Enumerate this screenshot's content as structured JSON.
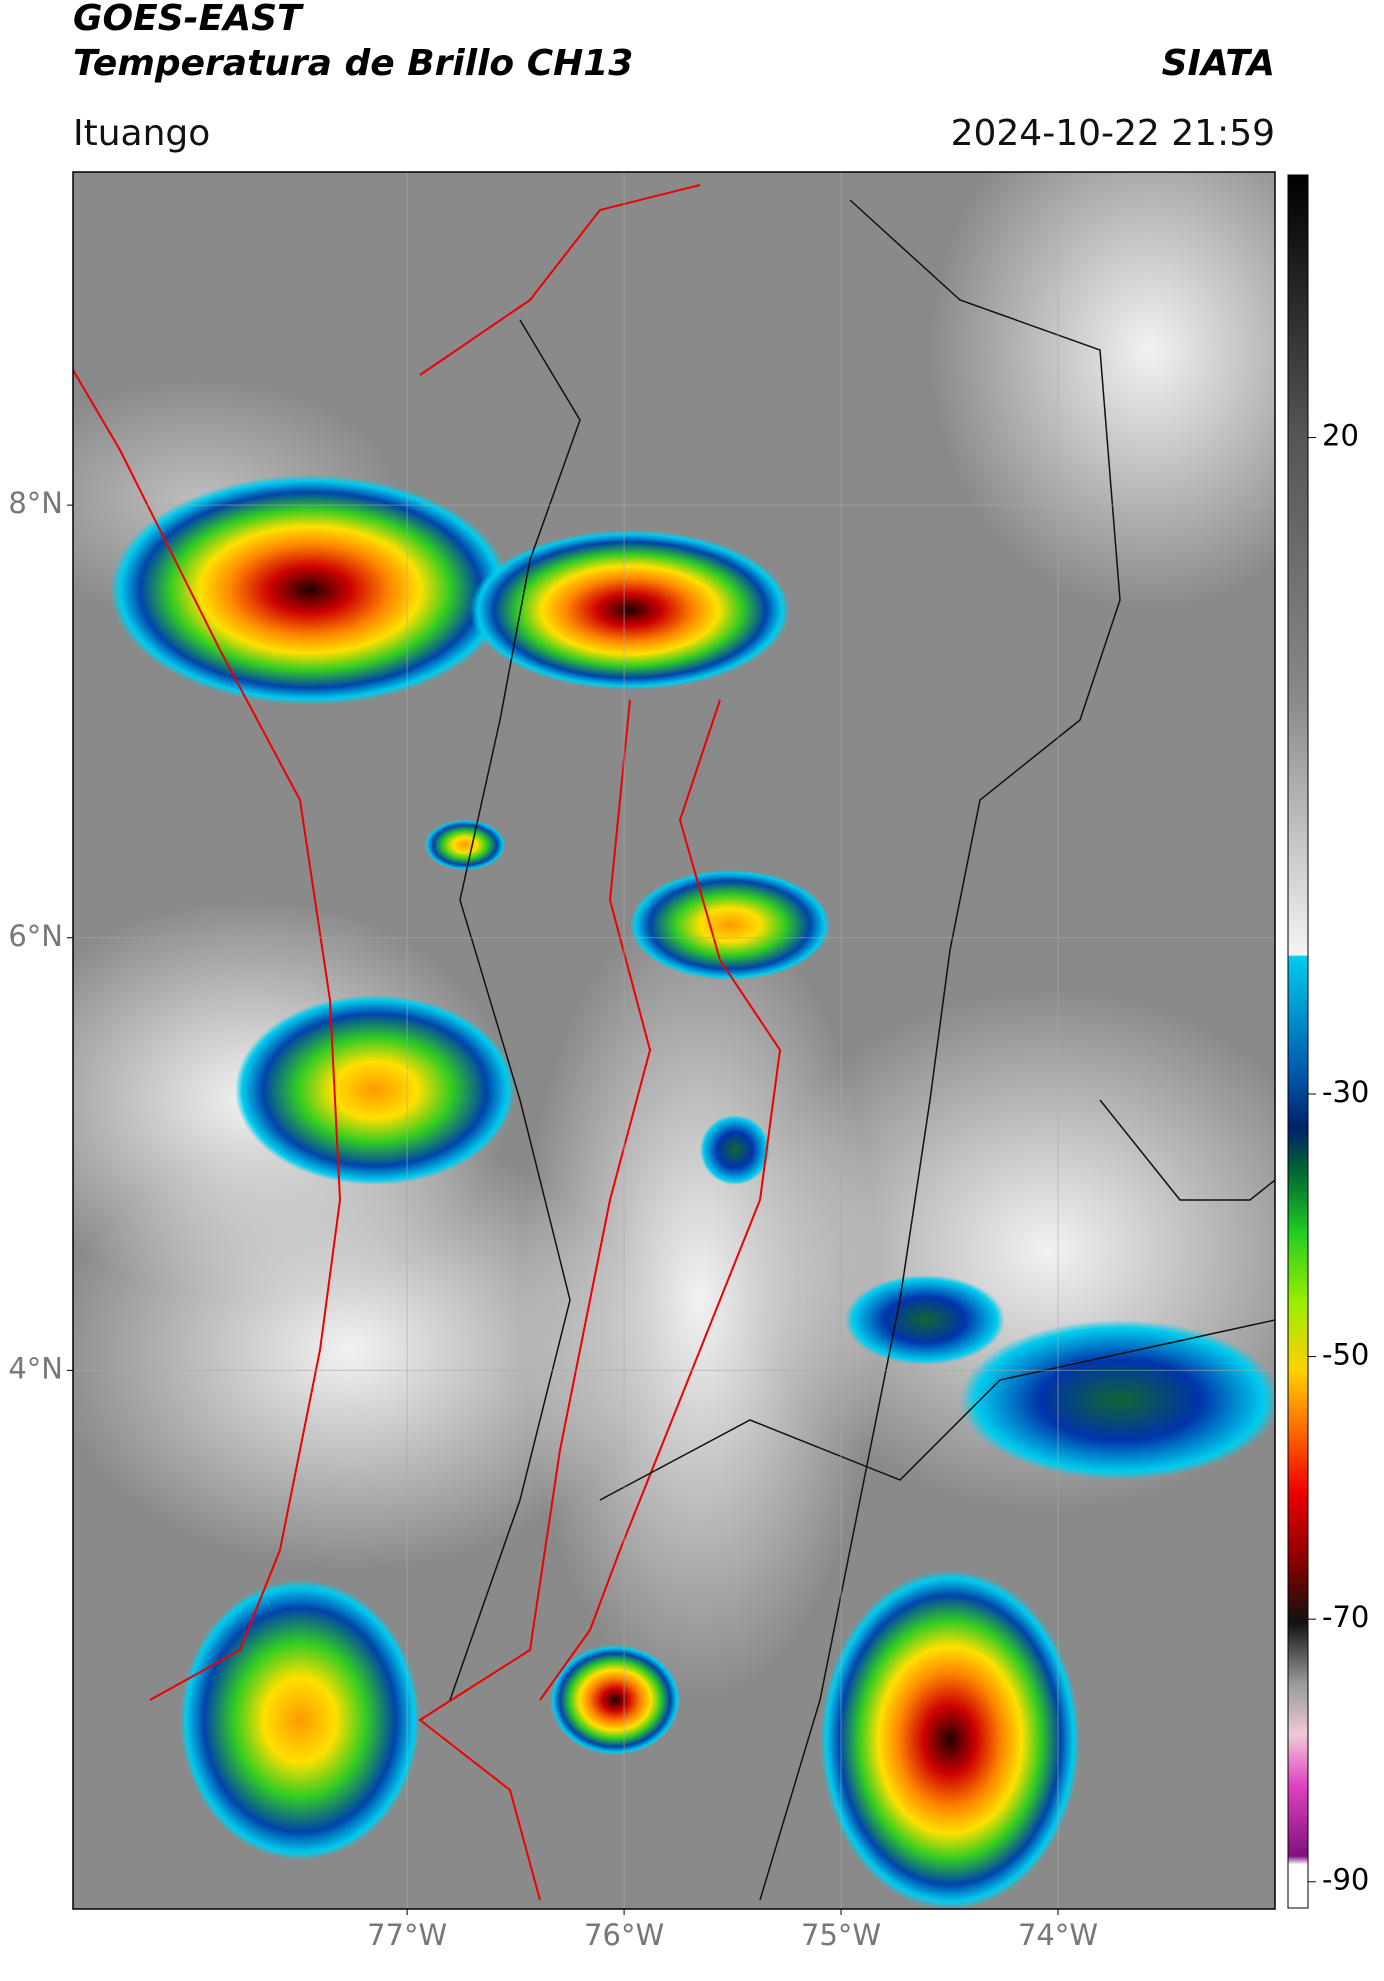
{
  "header": {
    "title": "GOES-EAST",
    "subtitle": "Temperatura de Brillo CH13",
    "source": "SIATA",
    "location": "Ituango",
    "datetime": "2024-10-22 21:59"
  },
  "map": {
    "xlim": [
      -78.54,
      -73.0
    ],
    "ylim": [
      1.51,
      9.54
    ],
    "xticks": [
      {
        "value": -77,
        "label": "77°W"
      },
      {
        "value": -76,
        "label": "76°W"
      },
      {
        "value": -75,
        "label": "75°W"
      },
      {
        "value": -74,
        "label": "74°W"
      }
    ],
    "yticks": [
      {
        "value": 8,
        "label": "8°N"
      },
      {
        "value": 6,
        "label": "6°N"
      },
      {
        "value": 4,
        "label": "4°N"
      }
    ],
    "grid": true
  },
  "colorbar": {
    "lim": [
      -92,
      40
    ],
    "ticks": [
      20,
      -30,
      -50,
      -70,
      -90
    ]
  }
}
